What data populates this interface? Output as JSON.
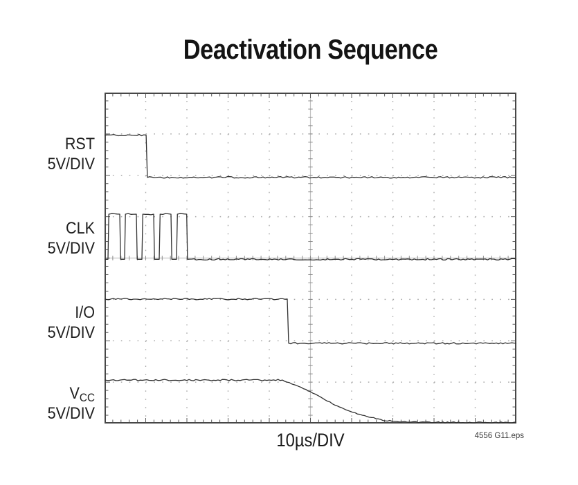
{
  "title": "Deactivation Sequence",
  "footer": {
    "xlabel": "10µs/DIV",
    "credit": "4556 G11.eps"
  },
  "colors": {
    "background": "#ffffff",
    "trace": "#303030",
    "grid_dots": "#a9a9a9",
    "center_lines": "#c2c2c2",
    "center_ticks": "#8a8a8a",
    "border": "#474747",
    "text": "#1c1c1c"
  },
  "chart_data": {
    "type": "line",
    "style": "oscilloscope",
    "title": "Deactivation Sequence",
    "xlabel": "10µs/DIV",
    "time_per_div": "10µs",
    "total_time_span": "100µs",
    "grid": {
      "x_divisions": 10,
      "y_divisions": 8,
      "minors_per_div": 5,
      "graticule": "dotted with center crosshair and edge ticks",
      "legend_position": "left of plot"
    },
    "series": [
      {
        "name": "RST",
        "label_main": "RST",
        "label_sub": "",
        "scale": "5V/DIV",
        "description": "High for first division (~10µs), then falls low and stays low",
        "points_div": [
          [
            0,
            1.03
          ],
          [
            1.01,
            1.03
          ],
          [
            1.04,
            2.05
          ],
          [
            10,
            2.05
          ]
        ]
      },
      {
        "name": "CLK",
        "label_main": "CLK",
        "label_sub": "",
        "scale": "5V/DIV",
        "description": "Burst of 5 clock pulses (~4µs period) stopping at 2 divisions (~20µs), low afterwards",
        "points_div": [
          [
            0,
            4.03
          ],
          [
            0.084,
            4.03
          ],
          [
            0.105,
            2.94
          ],
          [
            0.37,
            2.94
          ],
          [
            0.39,
            4.03
          ],
          [
            0.487,
            4.03
          ],
          [
            0.508,
            2.94
          ],
          [
            0.773,
            2.94
          ],
          [
            0.793,
            4.03
          ],
          [
            0.908,
            4.03
          ],
          [
            0.929,
            2.94
          ],
          [
            1.193,
            2.94
          ],
          [
            1.213,
            4.03
          ],
          [
            1.328,
            4.03
          ],
          [
            1.349,
            2.94
          ],
          [
            1.613,
            2.94
          ],
          [
            1.633,
            4.03
          ],
          [
            1.748,
            4.03
          ],
          [
            1.769,
            2.94
          ],
          [
            1.995,
            2.94
          ],
          [
            2.015,
            4.03
          ],
          [
            10,
            4.03
          ]
        ]
      },
      {
        "name": "I/O",
        "label_main": "I/O",
        "label_sub": "",
        "scale": "5V/DIV",
        "description": "High until ~44µs, then falls low and stays low",
        "points_div": [
          [
            0,
            4.99
          ],
          [
            4.437,
            4.99
          ],
          [
            4.471,
            6.06
          ],
          [
            10,
            6.06
          ]
        ]
      },
      {
        "name": "VCC",
        "label_main": "V",
        "label_sub": "CC",
        "scale": "5V/DIV",
        "description": "Flat until ~43µs, then exponential decay to 0 by ~70µs",
        "points_div": [
          [
            0,
            6.95
          ],
          [
            4.32,
            6.95
          ],
          [
            4.6,
            7.06
          ],
          [
            5.0,
            7.23
          ],
          [
            5.36,
            7.43
          ],
          [
            5.7,
            7.6
          ],
          [
            6.03,
            7.73
          ],
          [
            6.37,
            7.83
          ],
          [
            6.7,
            7.9
          ],
          [
            7.04,
            7.95
          ],
          [
            7.4,
            7.97
          ],
          [
            8.0,
            7.975
          ],
          [
            10,
            7.98
          ]
        ]
      }
    ]
  },
  "channel_label_positions_note": "labels right-aligned left of plot"
}
